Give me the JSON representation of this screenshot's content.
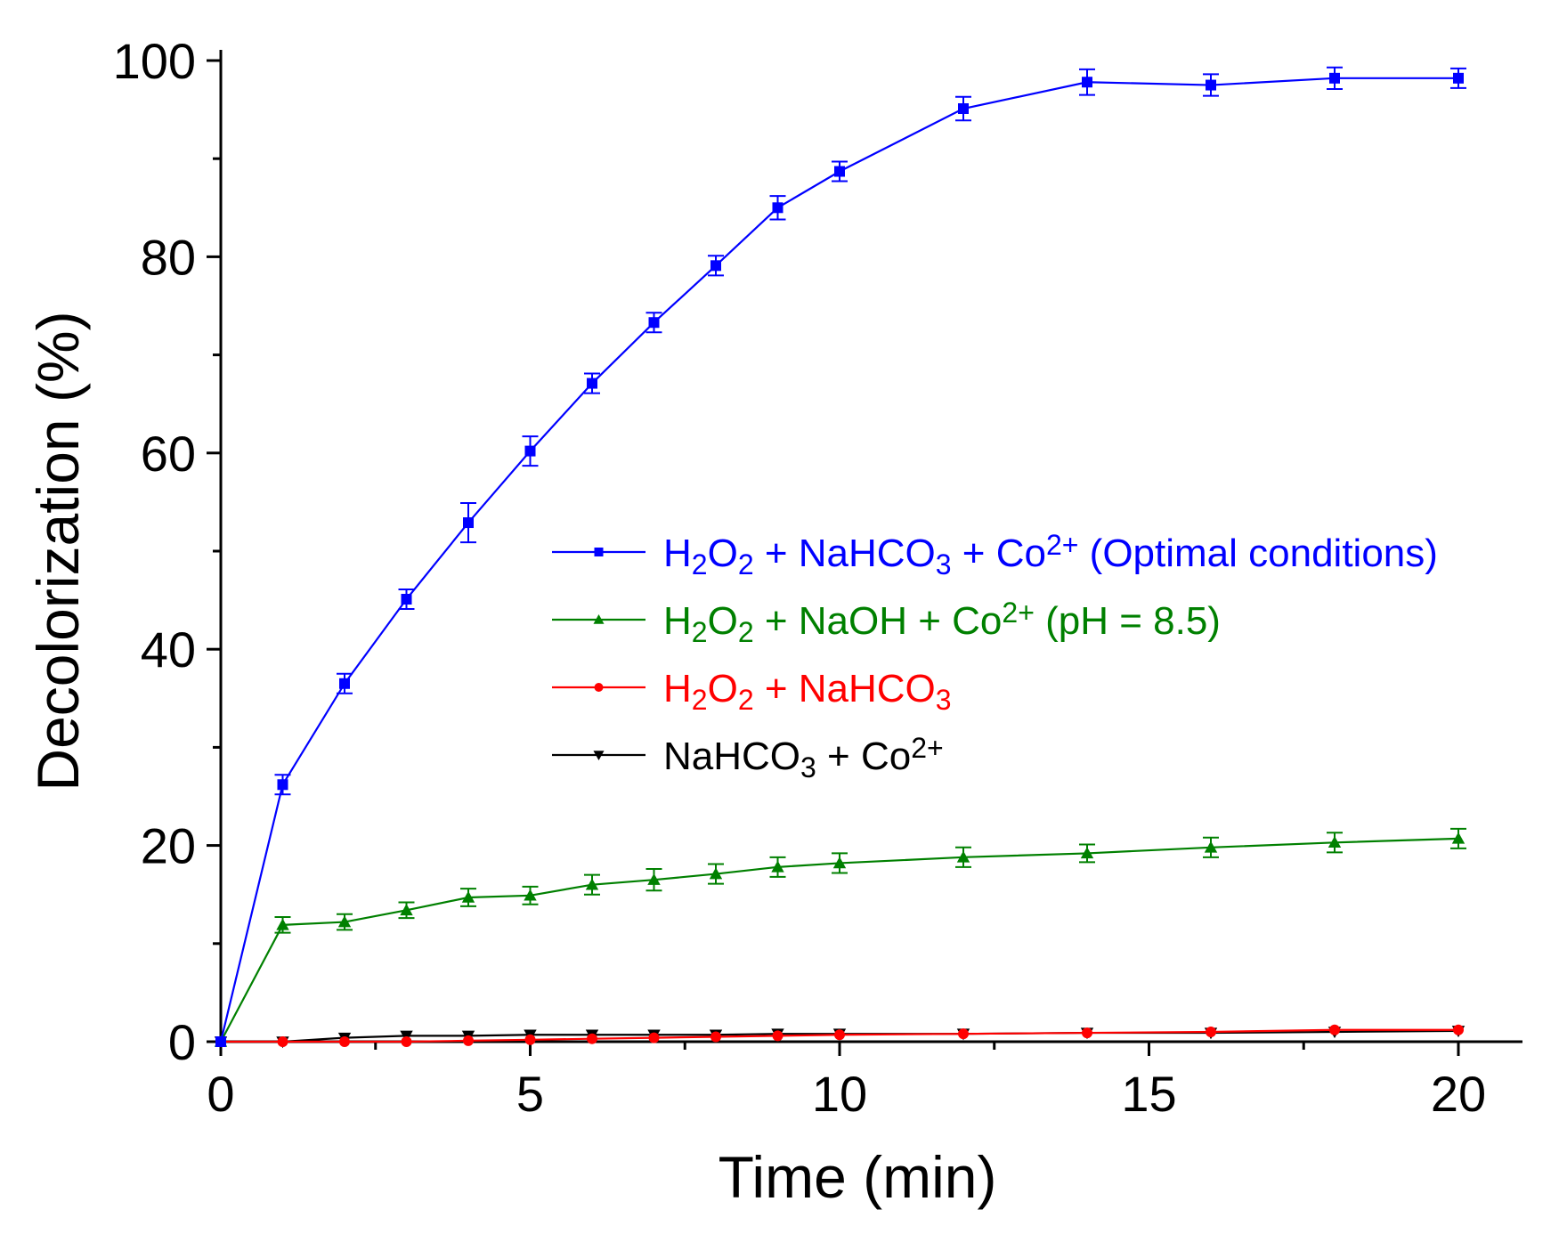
{
  "chart_data": {
    "type": "line",
    "title": "",
    "xlabel": "Time (min)",
    "ylabel": "Decolorization (%)",
    "xlim": [
      0,
      21
    ],
    "ylim": [
      0,
      100
    ],
    "xticks": [
      0,
      5,
      10,
      15,
      20
    ],
    "yticks": [
      0,
      20,
      40,
      60,
      80,
      100
    ],
    "x_minor_step": 2.5,
    "y_minor_step": 10,
    "grid": false,
    "legend_position": "center-right",
    "series": [
      {
        "name": "H2O2 + NaHCO3 + Co2+ (Optimal conditions)",
        "label_parts": [
          {
            "t": "H"
          },
          {
            "t": "2",
            "s": "sub"
          },
          {
            "t": "O"
          },
          {
            "t": "2",
            "s": "sub"
          },
          {
            "t": " + NaHCO"
          },
          {
            "t": "3",
            "s": "sub"
          },
          {
            "t": " + Co"
          },
          {
            "t": "2+",
            "s": "sup"
          },
          {
            "t": " (Optimal conditions)"
          }
        ],
        "color": "#0000ff",
        "marker": "square",
        "x": [
          0,
          1,
          2,
          3,
          4,
          5,
          6,
          7,
          8,
          9,
          10,
          12,
          14,
          16,
          18,
          20
        ],
        "y": [
          0,
          26.2,
          36.5,
          45.1,
          52.9,
          60.2,
          67.1,
          73.3,
          79.1,
          85.0,
          88.7,
          95.1,
          97.8,
          97.5,
          98.2,
          98.2
        ],
        "err": [
          0,
          1.0,
          1.0,
          1.0,
          2.0,
          1.5,
          1.0,
          1.0,
          1.0,
          1.2,
          1.0,
          1.2,
          1.3,
          1.1,
          1.1,
          1.0
        ]
      },
      {
        "name": "H2O2 + NaOH + Co2+ (pH = 8.5)",
        "label_parts": [
          {
            "t": "H"
          },
          {
            "t": "2",
            "s": "sub"
          },
          {
            "t": "O"
          },
          {
            "t": "2",
            "s": "sub"
          },
          {
            "t": " + NaOH + Co"
          },
          {
            "t": "2+",
            "s": "sup"
          },
          {
            "t": " (pH = 8.5)"
          }
        ],
        "color": "#008000",
        "marker": "triangle-up",
        "x": [
          0,
          1,
          2,
          3,
          4,
          5,
          6,
          7,
          8,
          9,
          10,
          12,
          14,
          16,
          18,
          20
        ],
        "y": [
          0,
          11.9,
          12.2,
          13.4,
          14.7,
          14.9,
          16.0,
          16.5,
          17.1,
          17.8,
          18.2,
          18.8,
          19.2,
          19.8,
          20.3,
          20.7
        ],
        "err": [
          0,
          0.8,
          0.8,
          0.8,
          0.9,
          0.9,
          1.0,
          1.1,
          1.0,
          1.0,
          1.0,
          1.0,
          0.9,
          1.0,
          1.0,
          1.0
        ]
      },
      {
        "name": "H2O2 + NaHCO3",
        "label_parts": [
          {
            "t": "H"
          },
          {
            "t": "2",
            "s": "sub"
          },
          {
            "t": "O"
          },
          {
            "t": "2",
            "s": "sub"
          },
          {
            "t": " + NaHCO"
          },
          {
            "t": "3",
            "s": "sub"
          }
        ],
        "color": "#ff0000",
        "marker": "circle",
        "x": [
          0,
          1,
          2,
          3,
          4,
          5,
          6,
          7,
          8,
          9,
          10,
          12,
          14,
          16,
          18,
          20
        ],
        "y": [
          0,
          0,
          0,
          0,
          0.1,
          0.2,
          0.3,
          0.4,
          0.5,
          0.6,
          0.7,
          0.8,
          0.9,
          1.0,
          1.2,
          1.2
        ],
        "err": [
          0,
          0,
          0,
          0,
          0,
          0,
          0,
          0,
          0,
          0,
          0,
          0,
          0,
          0,
          0,
          0
        ]
      },
      {
        "name": "NaHCO3 + Co2+",
        "label_parts": [
          {
            "t": "NaHCO"
          },
          {
            "t": "3",
            "s": "sub"
          },
          {
            "t": " + Co"
          },
          {
            "t": "2+",
            "s": "sup"
          }
        ],
        "color": "#000000",
        "marker": "triangle-down",
        "x": [
          0,
          1,
          2,
          3,
          4,
          5,
          6,
          7,
          8,
          9,
          10,
          12,
          14,
          16,
          18,
          20
        ],
        "y": [
          0,
          0,
          0.4,
          0.6,
          0.6,
          0.7,
          0.7,
          0.7,
          0.7,
          0.8,
          0.8,
          0.8,
          0.9,
          0.9,
          1.0,
          1.1
        ],
        "err": [
          0,
          0,
          0,
          0,
          0,
          0,
          0,
          0,
          0,
          0,
          0,
          0,
          0,
          0,
          0,
          0
        ]
      }
    ]
  }
}
